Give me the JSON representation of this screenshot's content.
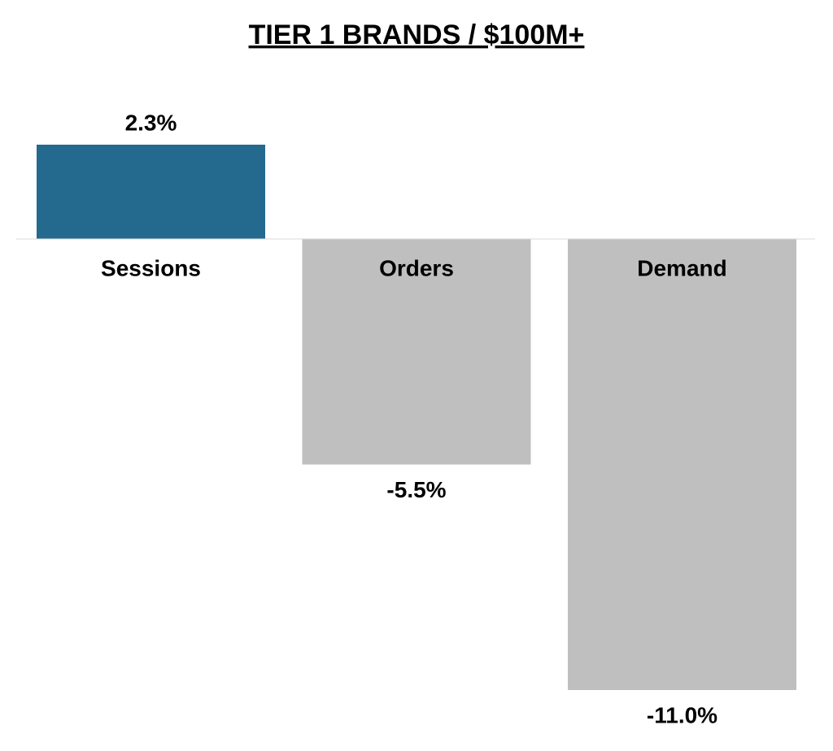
{
  "chart_data": {
    "type": "bar",
    "title": "TIER 1 BRANDS / $100M+",
    "categories": [
      "Sessions",
      "Orders",
      "Demand"
    ],
    "values": [
      2.3,
      -5.5,
      -11.0
    ],
    "value_labels": [
      "2.3%",
      "-5.5%",
      "-11.0%"
    ],
    "colors": [
      "#236a8e",
      "#bfbfbf",
      "#bfbfbf"
    ]
  }
}
